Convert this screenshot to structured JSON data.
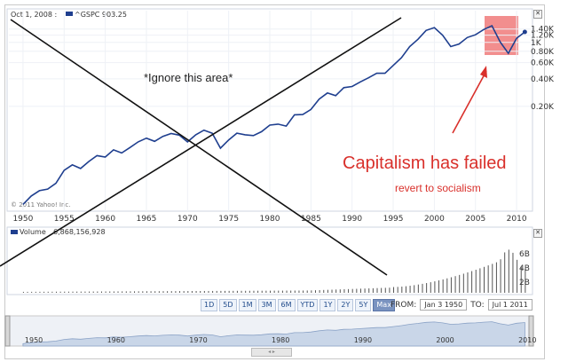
{
  "header": {
    "date": "Oct 1, 2008 :",
    "ticker": "^GSPC 903.25"
  },
  "copyright": "© 2011 Yahoo! Inc.",
  "volume": {
    "label": "Volume",
    "value": "6,868,156,928",
    "ticks": [
      "6B",
      "4B",
      "2B"
    ]
  },
  "annotations": {
    "ignore": "*Ignore this area*",
    "headline": "Capitalism has failed",
    "sub": "revert to socialism"
  },
  "range_buttons": [
    "1D",
    "5D",
    "1M",
    "3M",
    "6M",
    "YTD",
    "1Y",
    "2Y",
    "5Y",
    "Max"
  ],
  "active_range": "Max",
  "from_label": "FROM:",
  "from_value": "Jan 3 1950",
  "to_label": "TO:",
  "to_value": "Jul 1 2011",
  "overview_years": [
    "1950",
    "1960",
    "1970",
    "1980",
    "1990",
    "2000",
    "2010"
  ],
  "colors": {
    "series": "#1f3f8f",
    "annotation": "#d9302b",
    "highlight": "#f07a7a",
    "volume": "#555555"
  },
  "chart_data": {
    "type": "line",
    "scale": "log",
    "x_ticks": [
      "1950",
      "1955",
      "1960",
      "1965",
      "1970",
      "1975",
      "1980",
      "1985",
      "1990",
      "1995",
      "2000",
      "2005",
      "2010"
    ],
    "y_ticks": [
      "1.40K",
      "1.20K",
      "1K",
      "0.80K",
      "0.60K",
      "0.40K",
      "0.20K"
    ],
    "series": [
      {
        "name": "^GSPC",
        "x": [
          1950,
          1951,
          1952,
          1953,
          1954,
          1955,
          1956,
          1957,
          1958,
          1959,
          1960,
          1961,
          1962,
          1963,
          1964,
          1965,
          1966,
          1967,
          1968,
          1969,
          1970,
          1971,
          1972,
          1973,
          1974,
          1975,
          1976,
          1977,
          1978,
          1979,
          1980,
          1981,
          1982,
          1983,
          1984,
          1985,
          1986,
          1987,
          1988,
          1989,
          1990,
          1991,
          1992,
          1993,
          1994,
          1995,
          1996,
          1997,
          1998,
          1999,
          2000,
          2001,
          2002,
          2003,
          2004,
          2005,
          2006,
          2007,
          2008,
          2009,
          2010,
          2011
        ],
        "y": [
          17,
          21,
          24,
          25,
          29,
          40,
          46,
          42,
          50,
          58,
          56,
          67,
          62,
          71,
          82,
          90,
          83,
          94,
          101,
          97,
          82,
          98,
          110,
          102,
          70,
          86,
          102,
          98,
          96,
          106,
          125,
          128,
          122,
          162,
          163,
          185,
          240,
          280,
          262,
          320,
          330,
          370,
          410,
          460,
          460,
          560,
          680,
          900,
          1080,
          1350,
          1450,
          1200,
          900,
          960,
          1130,
          1210,
          1380,
          1520,
          1010,
          760,
          1110,
          1300
        ]
      }
    ],
    "volume_note": "volume bars rising sharply after 1995"
  }
}
